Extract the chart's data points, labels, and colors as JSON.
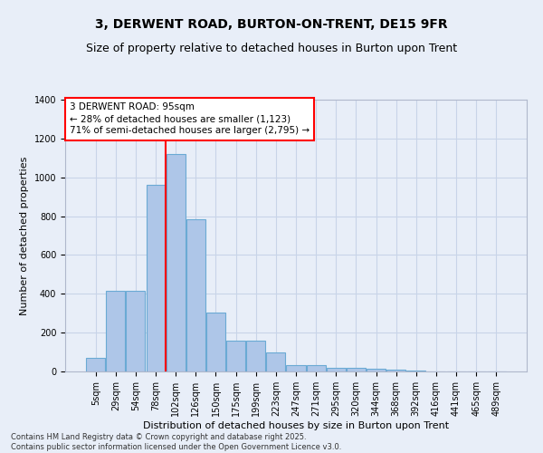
{
  "title": "3, DERWENT ROAD, BURTON-ON-TRENT, DE15 9FR",
  "subtitle": "Size of property relative to detached houses in Burton upon Trent",
  "xlabel": "Distribution of detached houses by size in Burton upon Trent",
  "ylabel": "Number of detached properties",
  "footer_line1": "Contains HM Land Registry data © Crown copyright and database right 2025.",
  "footer_line2": "Contains public sector information licensed under the Open Government Licence v3.0.",
  "categories": [
    "5sqm",
    "29sqm",
    "54sqm",
    "78sqm",
    "102sqm",
    "126sqm",
    "150sqm",
    "175sqm",
    "199sqm",
    "223sqm",
    "247sqm",
    "271sqm",
    "295sqm",
    "320sqm",
    "344sqm",
    "368sqm",
    "392sqm",
    "416sqm",
    "441sqm",
    "465sqm",
    "489sqm"
  ],
  "values": [
    70,
    415,
    415,
    960,
    1120,
    785,
    305,
    160,
    160,
    100,
    35,
    35,
    20,
    20,
    15,
    10,
    5,
    0,
    0,
    0,
    0
  ],
  "bar_color": "#aec6e8",
  "bar_edge_color": "#6aaad4",
  "annotation_text": "3 DERWENT ROAD: 95sqm\n← 28% of detached houses are smaller (1,123)\n71% of semi-detached houses are larger (2,795) →",
  "vline_bin": 4,
  "vline_color": "red",
  "ylim": [
    0,
    1400
  ],
  "yticks": [
    0,
    200,
    400,
    600,
    800,
    1000,
    1200,
    1400
  ],
  "fig_bg_color": "#e8eef8",
  "plot_bg_color": "#e8eef8",
  "grid_color": "#c8d4e8",
  "title_fontsize": 10,
  "subtitle_fontsize": 9,
  "tick_fontsize": 7,
  "ylabel_fontsize": 8,
  "xlabel_fontsize": 8,
  "footer_fontsize": 6,
  "annot_fontsize": 7.5
}
